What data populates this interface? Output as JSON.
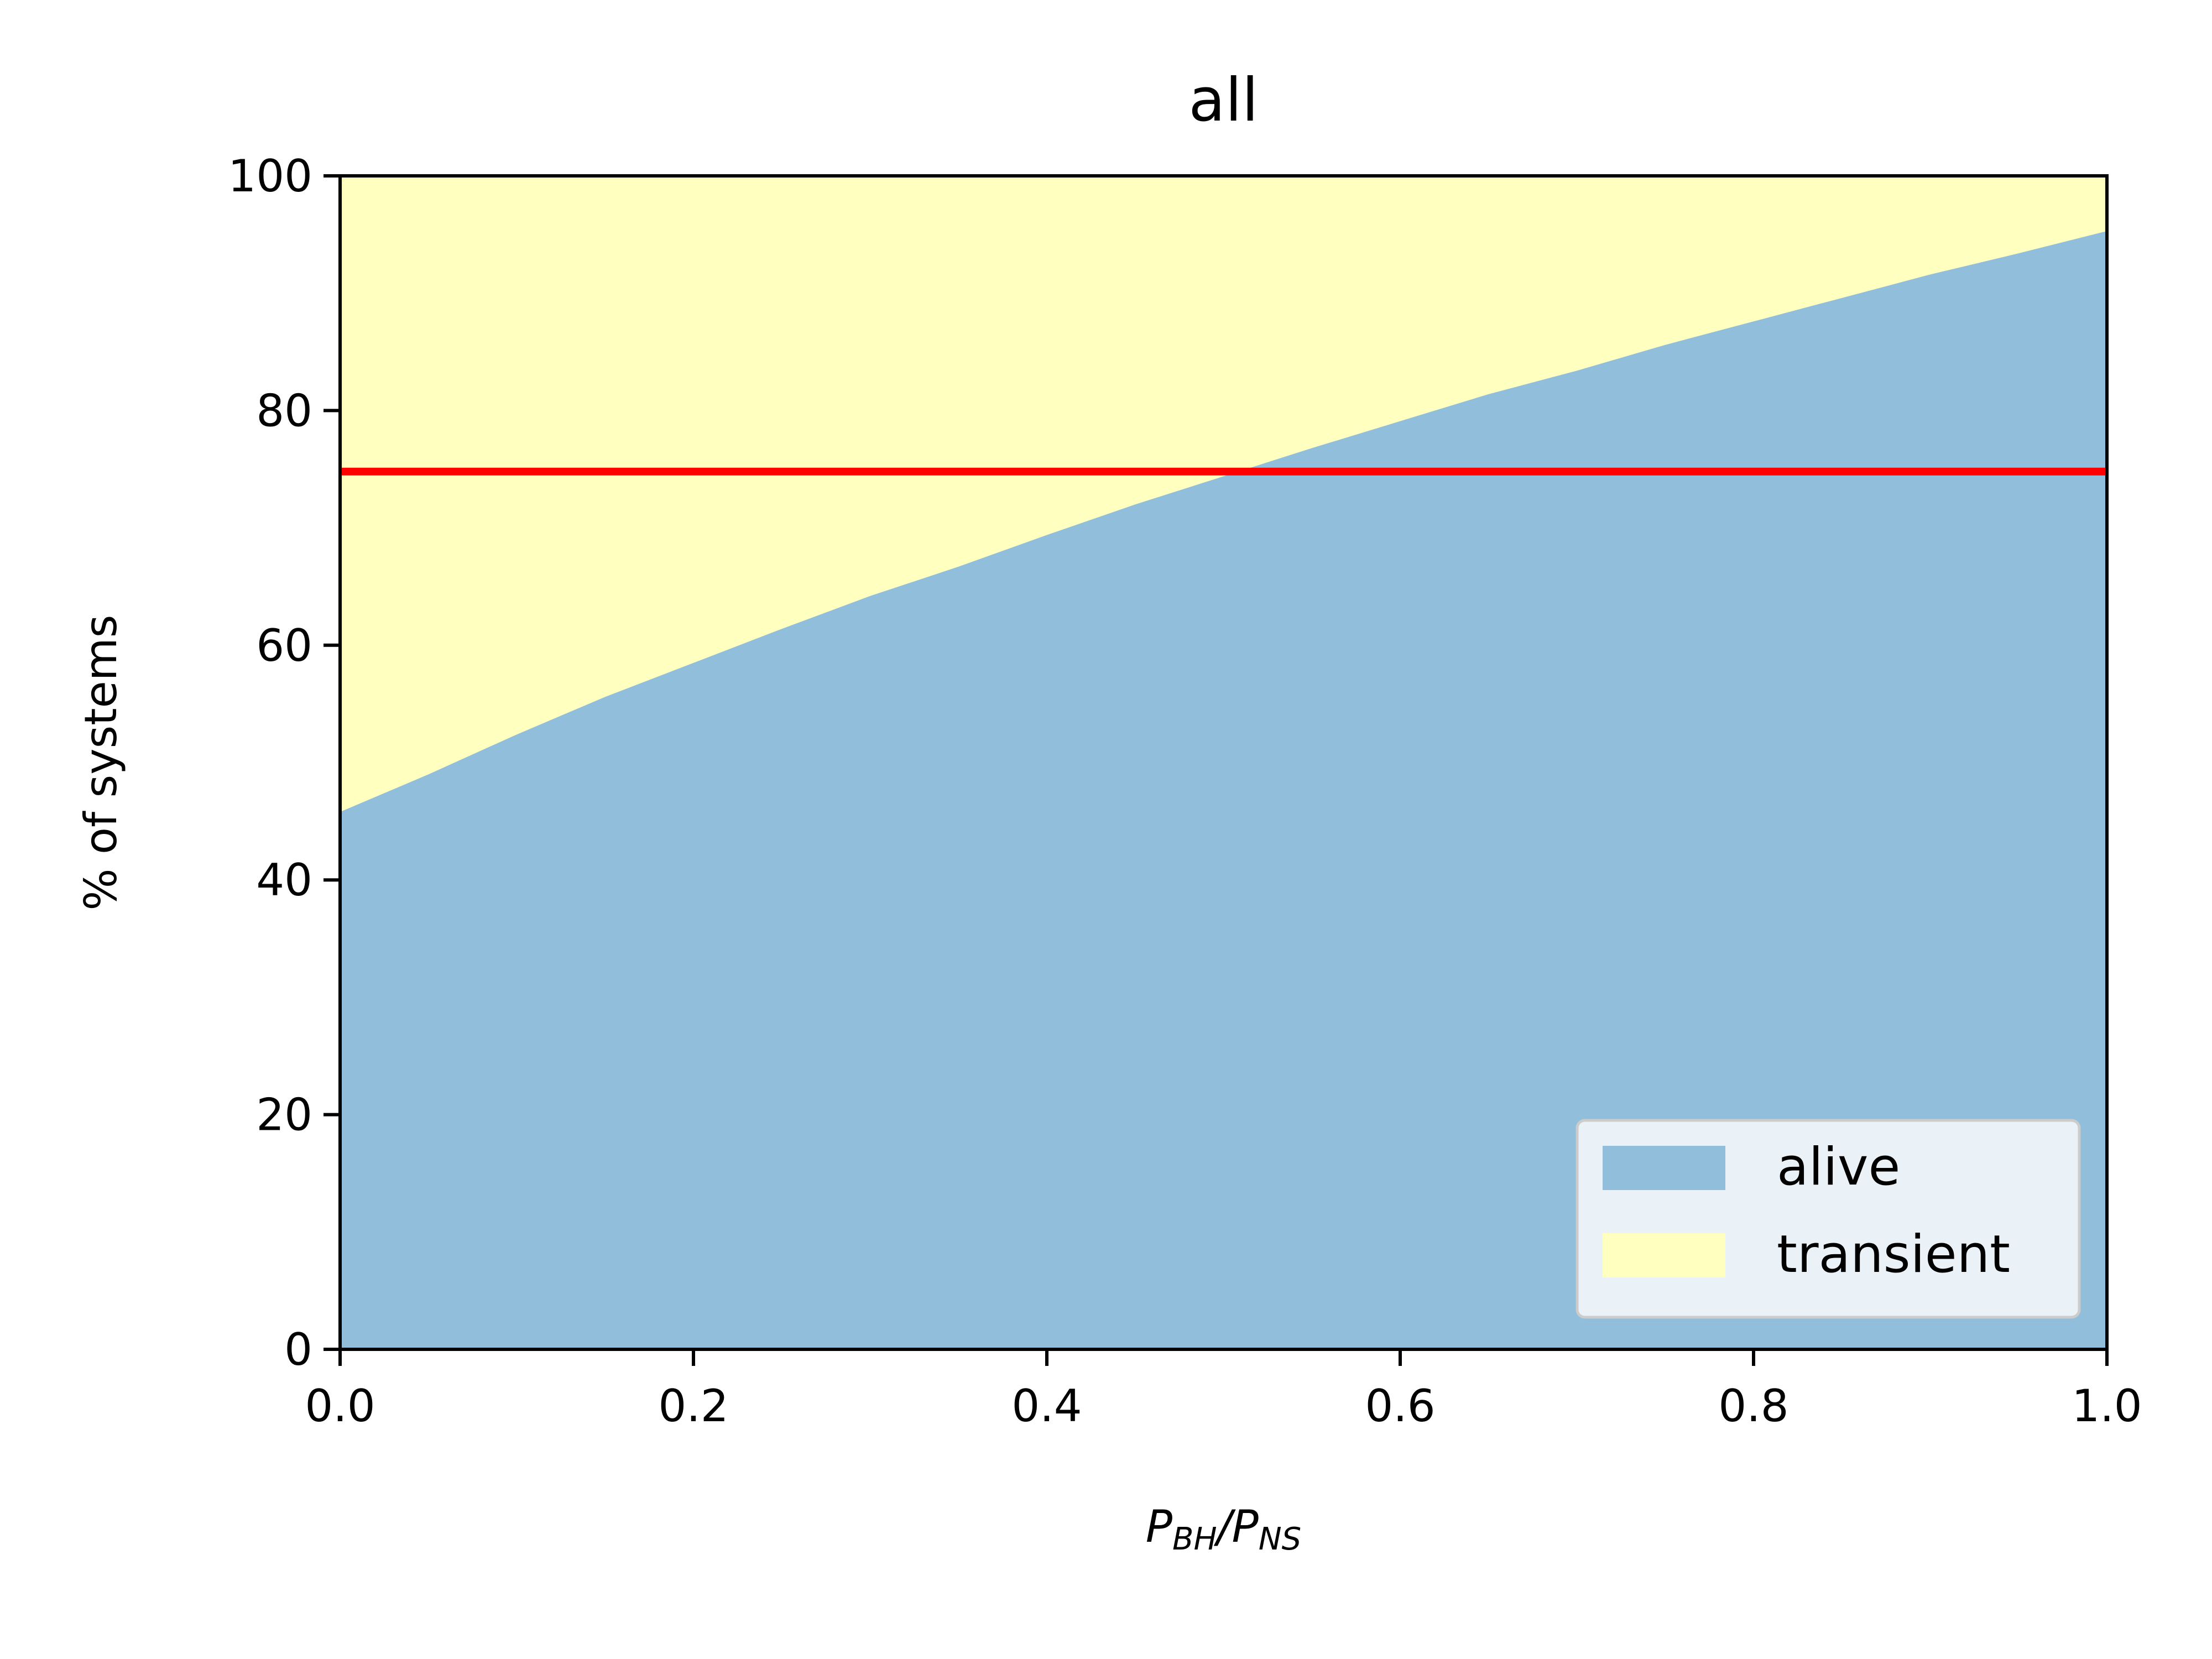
{
  "chart_data": {
    "type": "area",
    "title": "all",
    "xlabel": "P_BH/P_NS",
    "xlabel_parts": {
      "p1": "P",
      "s1": "BH",
      "slash": "/",
      "p2": "P",
      "s2": "NS"
    },
    "ylabel": "% of systems",
    "xlim": [
      0,
      1
    ],
    "ylim": [
      0,
      100
    ],
    "x_ticks": [
      "0.0",
      "0.2",
      "0.4",
      "0.6",
      "0.8",
      "1.0"
    ],
    "y_ticks": [
      "0",
      "20",
      "40",
      "60",
      "80",
      "100"
    ],
    "x": [
      0.0,
      0.05,
      0.1,
      0.15,
      0.2,
      0.25,
      0.3,
      0.35,
      0.4,
      0.45,
      0.5,
      0.55,
      0.6,
      0.65,
      0.7,
      0.75,
      0.8,
      0.85,
      0.9,
      0.95,
      1.0
    ],
    "series": [
      {
        "name": "alive",
        "color": "#91bedb",
        "values": [
          45.8,
          49.0,
          52.4,
          55.6,
          58.5,
          61.4,
          64.2,
          66.7,
          69.4,
          72.0,
          74.4,
          76.8,
          79.1,
          81.4,
          83.4,
          85.6,
          87.6,
          89.6,
          91.6,
          93.4,
          95.3
        ]
      },
      {
        "name": "transient",
        "color": "#ffffc0",
        "values": [
          54.2,
          51.0,
          47.6,
          44.4,
          41.5,
          38.6,
          35.8,
          33.3,
          30.6,
          28.0,
          25.6,
          23.2,
          20.9,
          18.6,
          16.6,
          14.4,
          12.4,
          10.4,
          8.4,
          6.6,
          4.7
        ]
      }
    ],
    "reference_line": {
      "y": 74.8,
      "color": "#ff0000"
    },
    "legend": {
      "placement": "lower-right",
      "entries": [
        "alive",
        "transient"
      ]
    },
    "grid": false
  }
}
